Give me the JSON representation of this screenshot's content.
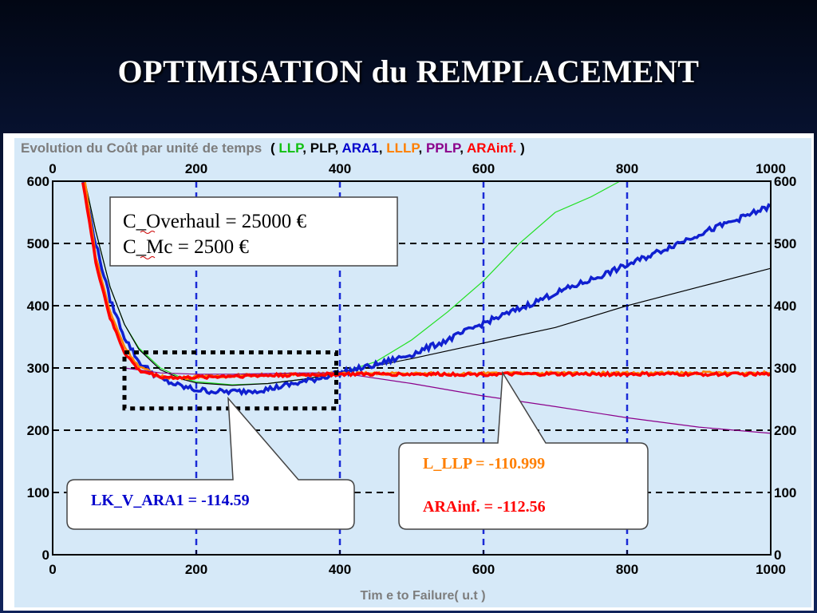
{
  "slide": {
    "title": "OPTIMISATION du REMPLACEMENT"
  },
  "chart_data": {
    "type": "line",
    "title_prefix": "Evolution  du Coût par unité  de temps",
    "title_series": [
      {
        "text": "LLP",
        "color": "#10c010"
      },
      {
        "text": "PLP",
        "color": "#000000"
      },
      {
        "text": "ARA1",
        "color": "#0000cc"
      },
      {
        "text": "LLLP",
        "color": "#ff7f00"
      },
      {
        "text": "PPLP",
        "color": "#8b008b"
      },
      {
        "text": "ARAinf.",
        "color": "#ff0000"
      }
    ],
    "title_open": "(",
    "title_close": ")",
    "title_sep": ", ",
    "xlabel": "Tim e to Failure( u.t )",
    "xlim": [
      0,
      1000
    ],
    "ylim": [
      0,
      600
    ],
    "xticks": [
      0,
      200,
      400,
      600,
      800,
      1000
    ],
    "yticks": [
      0,
      100,
      200,
      300,
      400,
      500,
      600
    ],
    "grid": {
      "vertical": [
        200,
        400,
        600,
        800
      ],
      "horizontal": [
        100,
        200,
        300,
        400,
        500,
        600
      ]
    },
    "series": [
      {
        "name": "LLP",
        "color": "#22e022",
        "x": [
          45,
          60,
          80,
          100,
          120,
          150,
          180,
          200,
          250,
          300,
          350,
          400,
          450,
          500,
          550,
          600,
          650,
          700,
          750,
          790
        ],
        "y": [
          600,
          520,
          430,
          370,
          332,
          300,
          284,
          278,
          273,
          275,
          282,
          292,
          310,
          345,
          390,
          440,
          500,
          550,
          575,
          600
        ]
      },
      {
        "name": "PLP",
        "color": "#000000",
        "x": [
          45,
          60,
          80,
          100,
          120,
          150,
          180,
          200,
          250,
          300,
          350,
          400,
          500,
          600,
          700,
          800,
          900,
          1000
        ],
        "y": [
          600,
          520,
          430,
          370,
          330,
          297,
          282,
          276,
          272,
          275,
          282,
          292,
          315,
          340,
          365,
          400,
          430,
          460
        ]
      },
      {
        "name": "ARA1",
        "color": "#1020d0",
        "x": [
          42,
          60,
          80,
          100,
          120,
          150,
          180,
          200,
          230,
          260,
          300,
          350,
          400,
          450,
          500,
          550,
          600,
          650,
          700,
          750,
          800,
          850,
          900,
          950,
          1000
        ],
        "y": [
          600,
          500,
          410,
          350,
          310,
          282,
          270,
          265,
          262,
          262,
          266,
          278,
          292,
          305,
          322,
          345,
          372,
          395,
          420,
          442,
          465,
          490,
          515,
          537,
          560
        ]
      },
      {
        "name": "LLLP",
        "color": "#ff8000",
        "x": [
          45,
          60,
          80,
          100,
          120,
          150,
          180,
          200,
          250,
          300,
          350,
          400,
          500,
          600,
          700,
          800,
          900,
          1000
        ],
        "y": [
          600,
          480,
          390,
          335,
          302,
          286,
          284,
          286,
          288,
          289,
          290,
          291,
          291,
          291,
          292,
          292,
          292,
          292
        ]
      },
      {
        "name": "PPLP",
        "color": "#8b008b",
        "x": [
          100,
          150,
          200,
          250,
          300,
          350,
          400,
          500,
          600,
          700,
          800,
          900,
          1000
        ],
        "y": [
          300,
          292,
          290,
          290,
          291,
          292,
          292,
          275,
          255,
          238,
          220,
          205,
          195
        ]
      },
      {
        "name": "ARAinf.",
        "color": "#ff0000",
        "x": [
          42,
          60,
          80,
          100,
          120,
          150,
          180,
          200,
          250,
          300,
          350,
          400,
          500,
          600,
          700,
          800,
          900,
          1000
        ],
        "y": [
          600,
          470,
          380,
          325,
          296,
          286,
          284,
          285,
          287,
          288,
          289,
          290,
          290,
          290,
          290,
          290,
          290,
          290
        ]
      }
    ],
    "zoom_box": {
      "x": [
        100,
        395
      ],
      "y": [
        235,
        325
      ]
    },
    "cost_box": {
      "line1": "C_Overhaul = 25000 €",
      "line2": "C_Mc = 2500 €"
    },
    "callouts": [
      {
        "lines": [
          {
            "text": "LK_V_ARA1 = -114.59",
            "color": "#0000cc"
          }
        ]
      },
      {
        "lines": [
          {
            "text": "L_LLP  = -110.999",
            "color": "#ff7f00"
          },
          {
            "text": "ARAinf. = -112.56",
            "color": "#ff0000"
          }
        ]
      }
    ]
  }
}
